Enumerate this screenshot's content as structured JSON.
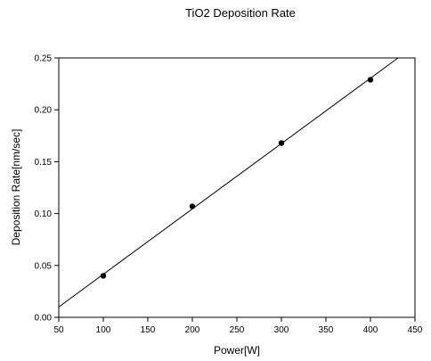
{
  "chart_data": {
    "type": "scatter",
    "title": "TiO2 Deposition Rate",
    "xlabel": "Power[W]",
    "ylabel": "Deposition Rate[nm/sec]",
    "xlim": [
      50,
      450
    ],
    "ylim": [
      0,
      0.25
    ],
    "x_ticks": [
      "50",
      "100",
      "150",
      "200",
      "250",
      "300",
      "350",
      "400",
      "450"
    ],
    "y_ticks": [
      "0.00",
      "0.05",
      "0.10",
      "0.15",
      "0.20",
      "0.25"
    ],
    "grid": false,
    "legend": "none",
    "series": [
      {
        "x": [
          100,
          200,
          300,
          400
        ],
        "y": [
          0.04,
          0.107,
          0.168,
          0.229
        ],
        "marker_color": "#000000"
      }
    ],
    "fit_line": {
      "x": [
        50,
        431
      ],
      "y": [
        0.01,
        0.25
      ],
      "color": "#000000"
    }
  }
}
